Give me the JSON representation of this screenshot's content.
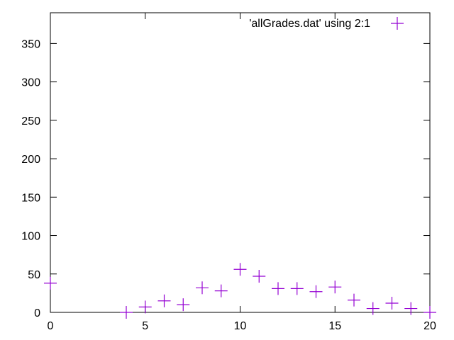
{
  "chart_data": {
    "type": "scatter",
    "title": "",
    "xlabel": "",
    "ylabel": "",
    "xlim": [
      0,
      20
    ],
    "ylim": [
      0,
      390
    ],
    "x_ticks": [
      0,
      5,
      10,
      15,
      20
    ],
    "y_ticks": [
      0,
      50,
      100,
      150,
      200,
      250,
      300,
      350
    ],
    "grid": false,
    "legend_position": "top-right",
    "series": [
      {
        "name": "'allGrades.dat' using 2:1",
        "color": "#9400d3",
        "marker": "plus",
        "x": [
          0,
          4,
          5,
          6,
          7,
          8,
          9,
          10,
          11,
          12,
          13,
          14,
          15,
          16,
          17,
          18,
          19,
          20
        ],
        "y": [
          38,
          0,
          7,
          15,
          10,
          32,
          28,
          56,
          47,
          31,
          31,
          27,
          33,
          16,
          5,
          12,
          5,
          0
        ]
      }
    ]
  }
}
